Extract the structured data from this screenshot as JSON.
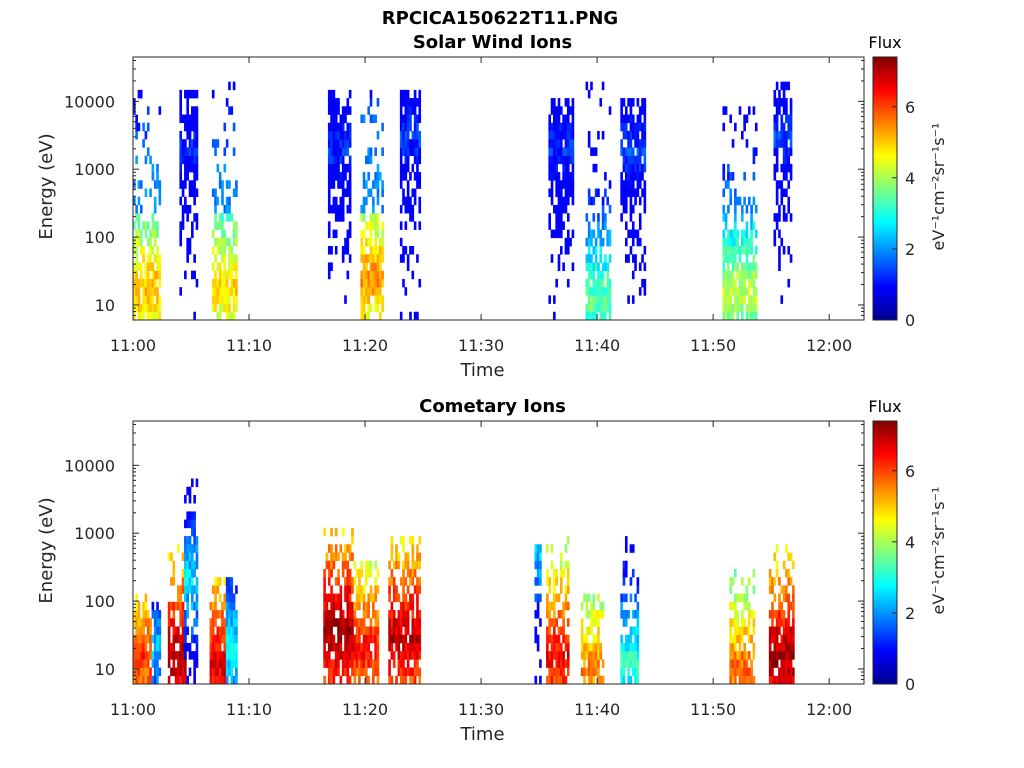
{
  "figure_title": "RPCICA150622T11.PNG",
  "chart_data": [
    {
      "type": "heatmap",
      "id": "solar",
      "title": "Solar Wind Ions",
      "xlabel": "Time",
      "ylabel": "Energy (eV)",
      "x_ticks": [
        "11:00",
        "11:10",
        "11:20",
        "11:30",
        "11:40",
        "11:50",
        "12:00"
      ],
      "x_tick_minutes": [
        0,
        10,
        20,
        30,
        40,
        50,
        60
      ],
      "xlim_minutes": [
        0,
        63
      ],
      "y_scale": "log",
      "y_ticks": [
        "10",
        "100",
        "1000",
        "10000"
      ],
      "y_tick_values": [
        10,
        100,
        1000,
        10000
      ],
      "ylim": [
        6,
        45000
      ],
      "colorbar": {
        "title": "Flux",
        "unit": "eV⁻¹cm⁻²sr⁻¹s⁻¹",
        "ticks": [
          "0",
          "2",
          "4",
          "6"
        ],
        "range": [
          0,
          7.4
        ],
        "colormap": "jet"
      },
      "bursts": [
        {
          "start_min": 0.0,
          "end_min": 2.4,
          "emax_eV": 15000,
          "peak_flux": 5.2,
          "center_eV": 18
        },
        {
          "start_min": 4.0,
          "end_min": 5.6,
          "emax_eV": 15000,
          "peak_flux": 1.2,
          "center_eV": 2000
        },
        {
          "start_min": 6.8,
          "end_min": 9.0,
          "emax_eV": 17000,
          "peak_flux": 5.0,
          "center_eV": 18
        },
        {
          "start_min": 16.8,
          "end_min": 18.8,
          "emax_eV": 13000,
          "peak_flux": 1.3,
          "center_eV": 2000
        },
        {
          "start_min": 19.6,
          "end_min": 21.6,
          "emax_eV": 16000,
          "peak_flux": 5.5,
          "center_eV": 25
        },
        {
          "start_min": 23.0,
          "end_min": 24.8,
          "emax_eV": 15000,
          "peak_flux": 1.4,
          "center_eV": 3000
        },
        {
          "start_min": 35.8,
          "end_min": 38.0,
          "emax_eV": 12000,
          "peak_flux": 1.3,
          "center_eV": 2000
        },
        {
          "start_min": 39.0,
          "end_min": 41.2,
          "emax_eV": 17000,
          "peak_flux": 3.6,
          "center_eV": 12
        },
        {
          "start_min": 42.0,
          "end_min": 44.2,
          "emax_eV": 11000,
          "peak_flux": 1.5,
          "center_eV": 2000
        },
        {
          "start_min": 50.8,
          "end_min": 53.8,
          "emax_eV": 12000,
          "peak_flux": 4.2,
          "center_eV": 15
        },
        {
          "start_min": 55.2,
          "end_min": 56.8,
          "emax_eV": 17000,
          "peak_flux": 1.4,
          "center_eV": 3000
        }
      ]
    },
    {
      "type": "heatmap",
      "id": "comet",
      "title": "Cometary Ions",
      "xlabel": "Time",
      "ylabel": "Energy (eV)",
      "x_ticks": [
        "11:00",
        "11:10",
        "11:20",
        "11:30",
        "11:40",
        "11:50",
        "12:00"
      ],
      "x_tick_minutes": [
        0,
        10,
        20,
        30,
        40,
        50,
        60
      ],
      "xlim_minutes": [
        0,
        63
      ],
      "y_scale": "log",
      "y_ticks": [
        "10",
        "100",
        "1000",
        "10000"
      ],
      "y_tick_values": [
        10,
        100,
        1000,
        10000
      ],
      "ylim": [
        6,
        45000
      ],
      "colorbar": {
        "title": "Flux",
        "unit": "eV⁻¹cm⁻²sr⁻¹s⁻¹",
        "ticks": [
          "0",
          "2",
          "4",
          "6"
        ],
        "range": [
          0,
          7.4
        ],
        "colormap": "jet"
      },
      "bursts": [
        {
          "start_min": 0.0,
          "end_min": 1.6,
          "emax_eV": 120,
          "peak_flux": 6.2,
          "center_eV": 15
        },
        {
          "start_min": 1.6,
          "end_min": 2.4,
          "emax_eV": 110,
          "peak_flux": 2.4,
          "center_eV": 20
        },
        {
          "start_min": 3.0,
          "end_min": 4.6,
          "emax_eV": 600,
          "peak_flux": 7.2,
          "center_eV": 15
        },
        {
          "start_min": 4.4,
          "end_min": 5.6,
          "emax_eV": 6000,
          "peak_flux": 2.6,
          "center_eV": 200
        },
        {
          "start_min": 6.6,
          "end_min": 8.0,
          "emax_eV": 250,
          "peak_flux": 6.8,
          "center_eV": 12
        },
        {
          "start_min": 8.0,
          "end_min": 9.0,
          "emax_eV": 200,
          "peak_flux": 2.8,
          "center_eV": 20
        },
        {
          "start_min": 16.4,
          "end_min": 19.0,
          "emax_eV": 1100,
          "peak_flux": 7.3,
          "center_eV": 35
        },
        {
          "start_min": 19.0,
          "end_min": 21.2,
          "emax_eV": 400,
          "peak_flux": 6.4,
          "center_eV": 20
        },
        {
          "start_min": 22.0,
          "end_min": 24.8,
          "emax_eV": 900,
          "peak_flux": 7.0,
          "center_eV": 30
        },
        {
          "start_min": 34.6,
          "end_min": 35.2,
          "emax_eV": 700,
          "peak_flux": 2.5,
          "center_eV": 600
        },
        {
          "start_min": 35.6,
          "end_min": 37.6,
          "emax_eV": 900,
          "peak_flux": 6.6,
          "center_eV": 15
        },
        {
          "start_min": 38.6,
          "end_min": 40.6,
          "emax_eV": 130,
          "peak_flux": 5.6,
          "center_eV": 10
        },
        {
          "start_min": 42.0,
          "end_min": 43.6,
          "emax_eV": 900,
          "peak_flux": 3.2,
          "center_eV": 12
        },
        {
          "start_min": 51.4,
          "end_min": 53.6,
          "emax_eV": 300,
          "peak_flux": 5.8,
          "center_eV": 10
        },
        {
          "start_min": 54.8,
          "end_min": 57.0,
          "emax_eV": 700,
          "peak_flux": 7.2,
          "center_eV": 15
        }
      ]
    }
  ]
}
